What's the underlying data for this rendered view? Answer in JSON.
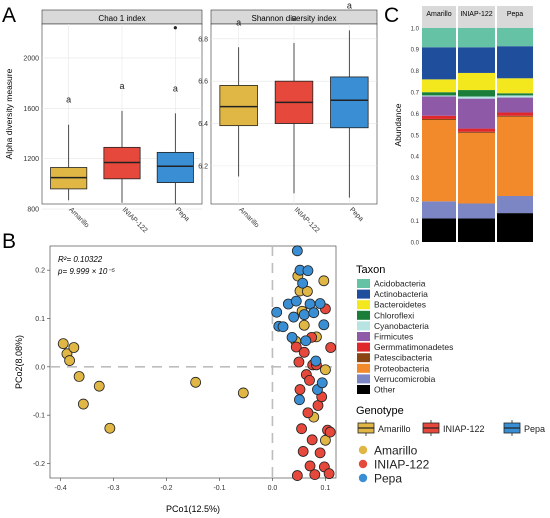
{
  "panel_labels": {
    "a": "A",
    "b": "B",
    "c": "C"
  },
  "panel_a": {
    "ylabel": "Alpha diversity measure",
    "chao": {
      "title": "Chao 1 index",
      "ticks": [
        "800",
        "1200",
        "1600",
        "2000"
      ],
      "groups": [
        "Amarillo",
        "INIAP-122",
        "Pepa"
      ],
      "letters": [
        "a",
        "a",
        "a"
      ]
    },
    "shannon": {
      "title": "Shannon diversity index",
      "ticks": [
        "6.2",
        "6.4",
        "6.6",
        "6.8"
      ],
      "groups": [
        "Amarillo",
        "INIAP-122",
        "Pepa"
      ],
      "letters": [
        "a",
        "a",
        "a"
      ]
    }
  },
  "panel_b": {
    "xlabel": "PCo1(12.5%)",
    "ylabel": "PCo2(8.08%)",
    "r2": "R²= 0.10322",
    "p": "p= 9.999 × 10⁻⁵",
    "xticks": [
      "-0.4",
      "-0.3",
      "-0.2",
      "-0.1",
      "0.0",
      "0.1"
    ],
    "yticks": [
      "0.2",
      "0.1",
      "0.0",
      "-0.1",
      "-0.2"
    ]
  },
  "panel_c": {
    "ylabel": "Abundance",
    "groups": [
      "Amarillo",
      "INIAP-122",
      "Pepa"
    ],
    "ticks": [
      "0.0",
      "0.1",
      "0.2",
      "0.3",
      "0.4",
      "0.5",
      "0.6",
      "0.7",
      "0.8",
      "0.9",
      "1.0"
    ]
  },
  "legend": {
    "taxon_title": "Taxon",
    "taxa": [
      {
        "name": "Acidobacteria",
        "color": "#66c2a5"
      },
      {
        "name": "Actinobacteria",
        "color": "#1f4e9c"
      },
      {
        "name": "Bacteroidetes",
        "color": "#f2e81d"
      },
      {
        "name": "Chloroflexi",
        "color": "#1a7d3a"
      },
      {
        "name": "Cyanobacteria",
        "color": "#b7e3e3"
      },
      {
        "name": "Firmicutes",
        "color": "#8e5aa8"
      },
      {
        "name": "Germmatimonadetes",
        "color": "#e0282c"
      },
      {
        "name": "Patescibacteria",
        "color": "#8b4513"
      },
      {
        "name": "Proteobacteria",
        "color": "#f28a2b"
      },
      {
        "name": "Verrucomicrobia",
        "color": "#7d86c4"
      },
      {
        "name": "Other",
        "color": "#000000"
      }
    ],
    "genotype_title": "Genotype",
    "genotypes": [
      {
        "name": "Amarillo",
        "color": "#e0b645"
      },
      {
        "name": "INIAP-122",
        "color": "#e6493b"
      },
      {
        "name": "Pepa",
        "color": "#3a8fd4"
      }
    ]
  },
  "chart_data": [
    {
      "type": "box",
      "title": "Chao 1 index",
      "ylabel": "Alpha diversity measure",
      "categories": [
        "Amarillo",
        "INIAP-122",
        "Pepa"
      ],
      "ylim": [
        840,
        2270
      ],
      "boxes": [
        {
          "min": 870,
          "q1": 960,
          "median": 1050,
          "q3": 1130,
          "max": 1470,
          "color": "#e0b645"
        },
        {
          "min": 850,
          "q1": 1040,
          "median": 1170,
          "q3": 1290,
          "max": 1580,
          "color": "#e6493b"
        },
        {
          "min": 840,
          "q1": 1010,
          "median": 1140,
          "q3": 1250,
          "max": 1560,
          "color": "#3a8fd4"
        }
      ],
      "outliers": [
        {
          "category": "Pepa",
          "value": 2240
        }
      ],
      "letters": [
        "a",
        "a",
        "a"
      ]
    },
    {
      "type": "box",
      "title": "Shannon diversity index",
      "categories": [
        "Amarillo",
        "INIAP-122",
        "Pepa"
      ],
      "ylim": [
        6.02,
        6.87
      ],
      "boxes": [
        {
          "min": 6.15,
          "q1": 6.39,
          "median": 6.48,
          "q3": 6.58,
          "max": 6.76,
          "color": "#e0b645"
        },
        {
          "min": 6.07,
          "q1": 6.4,
          "median": 6.5,
          "q3": 6.6,
          "max": 6.78,
          "color": "#e6493b"
        },
        {
          "min": 6.05,
          "q1": 6.38,
          "median": 6.51,
          "q3": 6.62,
          "max": 6.84,
          "color": "#3a8fd4"
        }
      ],
      "letters": [
        "a",
        "a",
        "a"
      ]
    },
    {
      "type": "scatter",
      "xlabel": "PCo1(12.5%)",
      "ylabel": "PCo2(8.08%)",
      "xlim": [
        -0.42,
        0.12
      ],
      "ylim": [
        -0.23,
        0.25
      ],
      "series": [
        {
          "name": "Amarillo",
          "color": "#e0b645",
          "points": [
            [
              -0.395,
              0.048
            ],
            [
              -0.388,
              0.027
            ],
            [
              -0.383,
              0.013
            ],
            [
              -0.375,
              0.04
            ],
            [
              -0.365,
              -0.02
            ],
            [
              -0.357,
              -0.077
            ],
            [
              -0.327,
              -0.04
            ],
            [
              -0.307,
              -0.127
            ],
            [
              -0.145,
              -0.032
            ],
            [
              -0.055,
              -0.054
            ],
            [
              0.048,
              0.188
            ],
            [
              0.052,
              0.157
            ],
            [
              0.056,
              0.115
            ],
            [
              0.06,
              0.086
            ],
            [
              0.066,
              0.156
            ],
            [
              0.078,
              -0.104
            ],
            [
              0.083,
              0.062
            ],
            [
              0.097,
              0.178
            ],
            [
              0.1,
              -0.006
            ],
            [
              0.1,
              -0.152
            ],
            [
              0.044,
              0.053
            ]
          ]
        },
        {
          "name": "INIAP-122",
          "color": "#e6493b",
          "points": [
            [
              0.045,
              0.041
            ],
            [
              0.05,
              0.01
            ],
            [
              0.052,
              -0.047
            ],
            [
              0.055,
              -0.128
            ],
            [
              0.058,
              -0.175
            ],
            [
              0.06,
              0.03
            ],
            [
              0.064,
              -0.016
            ],
            [
              0.067,
              -0.095
            ],
            [
              0.07,
              -0.028
            ],
            [
              0.071,
              -0.205
            ],
            [
              0.074,
              0.061
            ],
            [
              0.075,
              -0.151
            ],
            [
              0.076,
              0.004
            ],
            [
              0.08,
              -0.223
            ],
            [
              0.083,
              0.004
            ],
            [
              0.086,
              -0.08
            ],
            [
              0.09,
              -0.178
            ],
            [
              0.093,
              -0.062
            ],
            [
              0.098,
              -0.207
            ],
            [
              0.1,
              0.12
            ],
            [
              0.104,
              -0.131
            ],
            [
              0.107,
              -0.221
            ],
            [
              0.109,
              -0.135
            ],
            [
              0.11,
              0.04
            ],
            [
              0.047,
              -0.225
            ]
          ]
        },
        {
          "name": "Pepa",
          "color": "#3a8fd4",
          "points": [
            [
              0.008,
              0.113
            ],
            [
              0.012,
              0.084
            ],
            [
              0.02,
              0.083
            ],
            [
              0.03,
              0.13
            ],
            [
              0.037,
              0.061
            ],
            [
              0.04,
              0.103
            ],
            [
              0.045,
              0.136
            ],
            [
              0.047,
              0.24
            ],
            [
              0.052,
              0.2
            ],
            [
              0.057,
              0.173
            ],
            [
              0.06,
              0.108
            ],
            [
              0.063,
              0.054
            ],
            [
              0.067,
              0.199
            ],
            [
              0.071,
              0.13
            ],
            [
              0.078,
              0.112
            ],
            [
              0.082,
              0.012
            ],
            [
              0.085,
              -0.047
            ],
            [
              0.09,
              0.131
            ],
            [
              0.094,
              -0.033
            ],
            [
              0.097,
              0.087
            ],
            [
              0.051,
              -0.068
            ]
          ]
        }
      ],
      "annotations": [
        "R²= 0.10322",
        "p= 9.999 × 10⁻⁵"
      ]
    },
    {
      "type": "bar",
      "stacked": true,
      "ylabel": "Abundance",
      "categories": [
        "Amarillo",
        "INIAP-122",
        "Pepa"
      ],
      "ylim": [
        0,
        1.0
      ],
      "series": [
        {
          "name": "Other",
          "color": "#000000",
          "values": [
            0.11,
            0.11,
            0.135
          ]
        },
        {
          "name": "Verrucomicrobia",
          "color": "#7d86c4",
          "values": [
            0.08,
            0.07,
            0.08
          ]
        },
        {
          "name": "Proteobacteria",
          "color": "#f28a2b",
          "values": [
            0.38,
            0.33,
            0.37
          ]
        },
        {
          "name": "Patescibacteria",
          "color": "#8b4513",
          "values": [
            0.005,
            0.005,
            0.005
          ]
        },
        {
          "name": "Germmatimonadetes",
          "color": "#e0282c",
          "values": [
            0.015,
            0.015,
            0.015
          ]
        },
        {
          "name": "Firmicutes",
          "color": "#8e5aa8",
          "values": [
            0.09,
            0.14,
            0.07
          ]
        },
        {
          "name": "Cyanobacteria",
          "color": "#b7e3e3",
          "values": [
            0.005,
            0.01,
            0.01
          ]
        },
        {
          "name": "Chloroflexi",
          "color": "#1a7d3a",
          "values": [
            0.015,
            0.03,
            0.01
          ]
        },
        {
          "name": "Bacteroidetes",
          "color": "#f2e81d",
          "values": [
            0.06,
            0.08,
            0.07
          ]
        },
        {
          "name": "Actinobacteria",
          "color": "#1f4e9c",
          "values": [
            0.15,
            0.12,
            0.15
          ]
        },
        {
          "name": "Acidobacteria",
          "color": "#66c2a5",
          "values": [
            0.09,
            0.09,
            0.085
          ]
        }
      ]
    }
  ]
}
